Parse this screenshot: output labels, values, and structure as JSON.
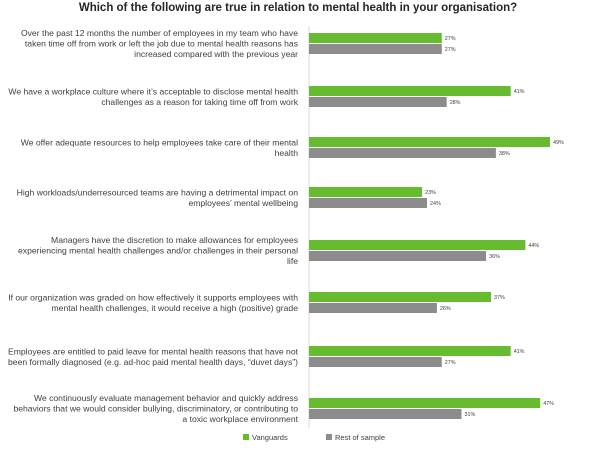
{
  "chart_data": {
    "type": "bar",
    "orientation": "horizontal",
    "title": "Which of the following are true in relation to mental health in your organisation?",
    "categories": [
      [
        "Over the past 12 months the number of employees in my team who have",
        "taken time off from work or left the job due to mental health reasons has",
        "increased compared with the previous year"
      ],
      [
        "We have a workplace culture where it’s acceptable to disclose mental health",
        "challenges as a reason for taking time off from work"
      ],
      [
        "We offer adequate resources to help employees take care of their mental",
        "health"
      ],
      [
        "High workloads/underresourced teams are having a detrimental impact on",
        "employees’ mental wellbeing"
      ],
      [
        "Managers have the discretion to make allowances for employees",
        "experiencing mental health challenges and/or challenges in their personal",
        "life"
      ],
      [
        "If our organization was graded on how effectively it supports employees with",
        "mental health challenges, it would receive a high (positive) grade"
      ],
      [
        "Employees are entitled to paid leave for mental health reasons that have not",
        "been formally diagnosed (e.g. ad-hoc paid mental health days, “duvet days”)"
      ],
      [
        "We continuously evaluate management behavior and quickly address",
        "behaviors that we would consider bullying, discriminatory, or contributing to",
        "a toxic workplace environment"
      ]
    ],
    "series": [
      {
        "name": "Vanguards",
        "color": "#66bb2e",
        "values": [
          27,
          41,
          49,
          23,
          44,
          37,
          41,
          47
        ],
        "labels": [
          "27%",
          "41%",
          "49%",
          "23%",
          "44%",
          "37%",
          "41%",
          "47%"
        ]
      },
      {
        "name": "Rest of sample",
        "color": "#8c8c8c",
        "values": [
          27,
          28,
          38,
          24,
          36,
          26,
          27,
          31
        ],
        "labels": [
          "27%",
          "28%",
          "38%",
          "24%",
          "36%",
          "26%",
          "27%",
          "31%"
        ]
      }
    ],
    "xlim": [
      0,
      50
    ],
    "grid": false,
    "legend_position": "bottom-center"
  }
}
